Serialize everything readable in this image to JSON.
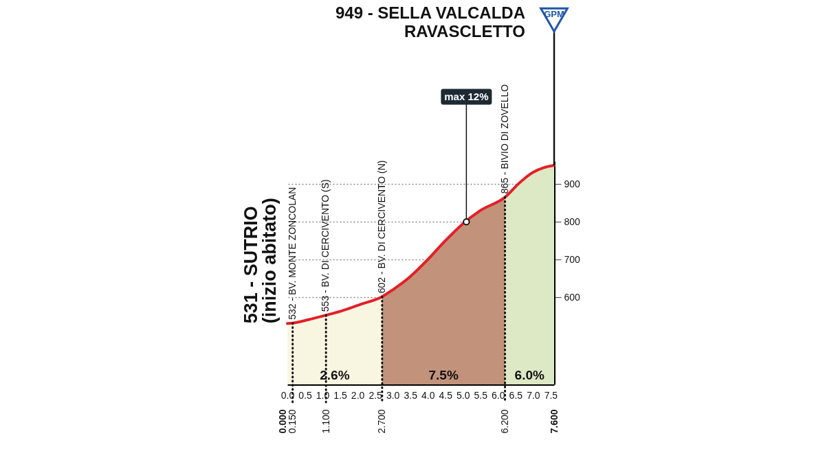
{
  "chart_data": {
    "type": "area",
    "series": [
      {
        "name": "2.6%",
        "color": "#f8f6e1",
        "x": [
          0,
          0.15,
          0.6,
          1.1,
          1.6,
          2.1,
          2.7
        ],
        "values": [
          531,
          532,
          541,
          553,
          566,
          582,
          602
        ]
      },
      {
        "name": "7.5%",
        "color": "#c3927b",
        "x": [
          2.7,
          3.0,
          3.5,
          4.0,
          4.5,
          5.0,
          5.5,
          6.2
        ],
        "values": [
          602,
          620,
          655,
          700,
          750,
          795,
          830,
          865
        ]
      },
      {
        "name": "6.0%",
        "color": "#dce9c4",
        "x": [
          6.2,
          6.6,
          7.0,
          7.3,
          7.6
        ],
        "values": [
          865,
          902,
          931,
          943,
          949
        ]
      },
      {
        "type": "line",
        "color": "#e41f26",
        "x": [
          0,
          0.15,
          0.6,
          1.1,
          1.6,
          2.1,
          2.7,
          3.0,
          3.5,
          4.0,
          4.5,
          5.0,
          5.5,
          6.2,
          6.6,
          7.0,
          7.3,
          7.6
        ],
        "values": [
          531,
          532,
          541,
          553,
          566,
          582,
          602,
          620,
          655,
          700,
          750,
          795,
          830,
          865,
          902,
          931,
          943,
          949
        ]
      }
    ],
    "xlim": [
      0,
      7.6
    ],
    "xticks": [
      {
        "value": 0,
        "label": "0.0"
      },
      0.5,
      {
        "value": 1,
        "label": "1.0"
      },
      1.5,
      {
        "value": 2,
        "label": "2.0"
      },
      2.5,
      {
        "value": 3,
        "label": "3.0"
      },
      3.5,
      {
        "value": 4,
        "label": "4.0"
      },
      4.5,
      {
        "value": 5,
        "label": "5.0"
      },
      5.5,
      {
        "value": 6,
        "label": "6.0"
      },
      6.5,
      {
        "value": 7,
        "label": "7.0"
      },
      7.5
    ],
    "x2lim": [
      0,
      7.6
    ],
    "x2ticks": [
      {
        "value": 0,
        "label": "0.000"
      },
      {
        "value": 0.15,
        "label": "0.150"
      },
      {
        "value": 1.1,
        "label": "1.100"
      },
      {
        "value": 2.7,
        "label": "2.700"
      },
      {
        "value": 6.2,
        "label": "6.200"
      },
      {
        "value": 7.6,
        "label": "7.600"
      }
    ],
    "ylim": [
      370,
      960
    ],
    "yticks": [
      600,
      700,
      800,
      900
    ],
    "grid": "y",
    "ref_lines": [
      {
        "axis": "x",
        "value": 0.15,
        "color": "#111111",
        "line_style": "dotted"
      },
      {
        "axis": "x",
        "value": 1.1,
        "color": "#111111",
        "line_style": "dotted"
      },
      {
        "axis": "x",
        "value": 2.7,
        "color": "#111111",
        "line_style": "dotted"
      },
      {
        "axis": "x",
        "value": 6.2,
        "color": "#111111",
        "line_style": "dotted"
      }
    ],
    "annotations": [
      {
        "text": "531 - SUTRIO\n(inizio abitato)",
        "x": 0,
        "y": 531
      },
      {
        "text": "532 - BV. MONTE ZONCOLAN",
        "x": 0.15,
        "y": 532
      },
      {
        "text": "553 - BV. DI CERCIVENTO (S)",
        "x": 1.1,
        "y": 553
      },
      {
        "text": "602 - BV. DI CERCIVENTO (N)",
        "x": 2.7,
        "y": 602
      },
      {
        "text": "865 - BIVIO DI ZOVELLO",
        "x": 6.2,
        "y": 865
      },
      "949 - SELLA VALCALDA\nRAVASCLETTO",
      {
        "text": "GPM",
        "x": 7.6,
        "y": 949
      },
      {
        "text": "max 12%",
        "x": 5.1,
        "y": 800
      }
    ]
  }
}
